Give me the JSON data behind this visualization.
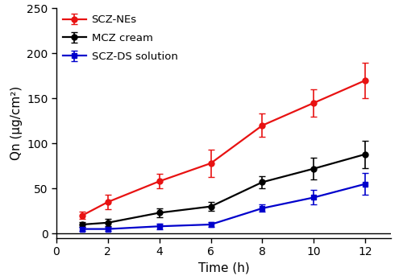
{
  "x": [
    1,
    2,
    4,
    6,
    8,
    10,
    12
  ],
  "scz_ne_y": [
    20,
    35,
    58,
    78,
    120,
    145,
    170
  ],
  "scz_ne_err": [
    4,
    8,
    8,
    15,
    13,
    15,
    20
  ],
  "mcz_cream_y": [
    10,
    12,
    23,
    30,
    57,
    72,
    88
  ],
  "mcz_cream_err": [
    3,
    4,
    5,
    5,
    7,
    12,
    15
  ],
  "scz_ds_y": [
    5,
    5,
    8,
    10,
    28,
    40,
    55
  ],
  "scz_ds_err": [
    2,
    2,
    3,
    3,
    4,
    8,
    12
  ],
  "scz_ne_color": "#e81212",
  "mcz_cream_color": "#000000",
  "scz_ds_color": "#0000cc",
  "xlabel": "Time (h)",
  "ylabel": "Qn (μg/cm²)",
  "ylim": [
    -5,
    250
  ],
  "xlim": [
    0,
    13
  ],
  "yticks": [
    0,
    50,
    100,
    150,
    200,
    250
  ],
  "xticks": [
    0,
    2,
    4,
    6,
    8,
    10,
    12
  ],
  "legend_labels": [
    "SCZ-NEs",
    "MCZ cream",
    "SCZ-DS solution"
  ],
  "marker_scz_ne": "o",
  "marker_mcz": "o",
  "marker_scz_ds": "s",
  "linewidth": 1.6,
  "markersize": 5,
  "capsize": 3,
  "elinewidth": 1.2
}
